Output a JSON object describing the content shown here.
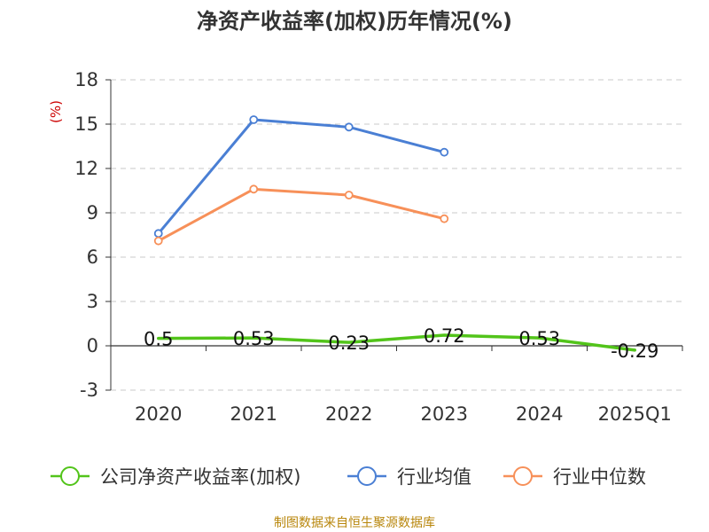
{
  "chart_data": {
    "type": "line",
    "title": "净资产收益率(加权)历年情况(%)",
    "unit_label": "(%)",
    "categories": [
      "2020",
      "2021",
      "2022",
      "2023",
      "2024",
      "2025Q1"
    ],
    "ylim": [
      -3,
      18
    ],
    "yticks": [
      -3,
      0,
      3,
      6,
      9,
      12,
      15,
      18
    ],
    "grid": true,
    "legend_position": "bottom",
    "series": [
      {
        "name": "公司净资产收益率(加权)",
        "color": "#52c41a",
        "values": [
          0.5,
          0.53,
          0.23,
          0.72,
          0.53,
          -0.29
        ],
        "data_labels": [
          "0.5",
          "0.53",
          "0.23",
          "0.72",
          "0.53",
          "-0.29"
        ]
      },
      {
        "name": "行业均值",
        "color": "#4a7fd4",
        "values": [
          7.6,
          15.3,
          14.8,
          13.1,
          null,
          null
        ]
      },
      {
        "name": "行业中位数",
        "color": "#f79059",
        "values": [
          7.1,
          10.6,
          10.2,
          8.6,
          null,
          null
        ]
      }
    ],
    "source": "制图数据来自恒生聚源数据库"
  }
}
